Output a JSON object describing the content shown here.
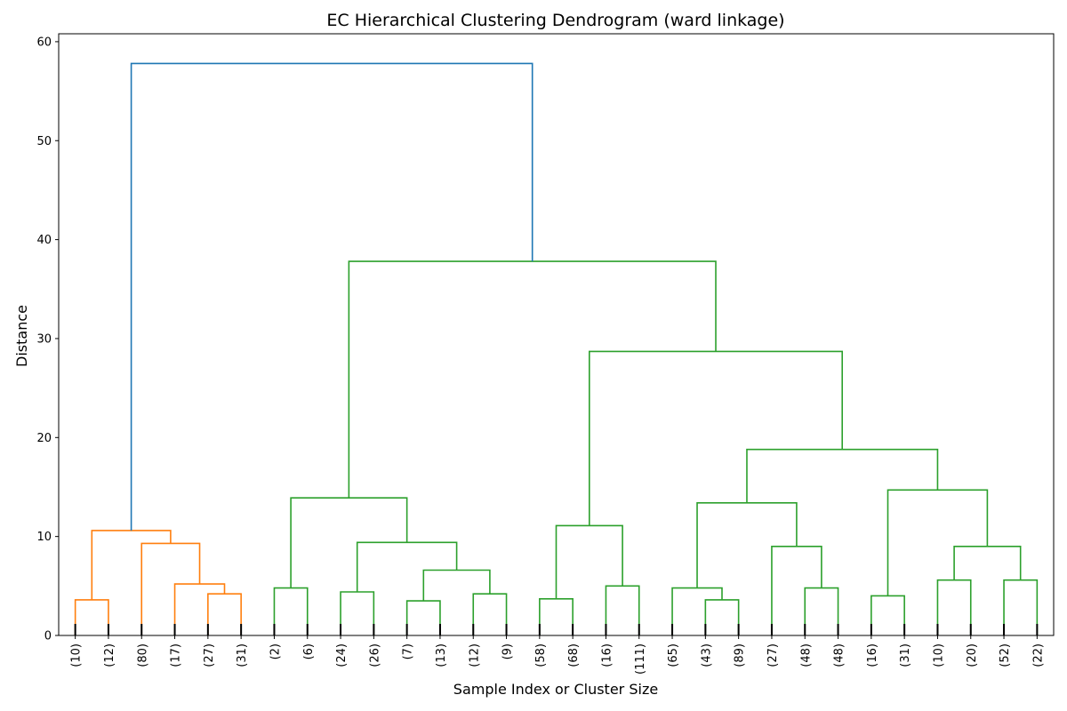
{
  "chart_data": {
    "type": "dendrogram",
    "title": "EC Hierarchical Clustering Dendrogram (ward linkage)",
    "xlabel": "Sample Index or Cluster Size",
    "ylabel": "Distance",
    "ylim": [
      0,
      60.8
    ],
    "yticks": [
      0,
      10,
      20,
      30,
      40,
      50,
      60
    ],
    "grid": false,
    "colors": {
      "above_threshold": "#1f77b4",
      "cluster_1": "#ff7f0e",
      "cluster_2": "#2ca02c",
      "leaf_marks": "#000000"
    },
    "leaves": [
      "(10)",
      "(12)",
      "(80)",
      "(17)",
      "(27)",
      "(31)",
      "(2)",
      "(6)",
      "(24)",
      "(26)",
      "(7)",
      "(13)",
      "(12)",
      "(9)",
      "(58)",
      "(68)",
      "(16)",
      "(111)",
      "(65)",
      "(43)",
      "(89)",
      "(27)",
      "(48)",
      "(48)",
      "(16)",
      "(31)",
      "(10)",
      "(20)",
      "(52)",
      "(22)"
    ],
    "merges": [
      {
        "a": "L0",
        "b": "L1",
        "height": 3.6,
        "color": "cluster_1"
      },
      {
        "a": "L4",
        "b": "L5",
        "height": 4.2,
        "color": "cluster_1"
      },
      {
        "a": "L3",
        "b": "N1",
        "height": 5.2,
        "color": "cluster_1"
      },
      {
        "a": "L2",
        "b": "N2",
        "height": 9.3,
        "color": "cluster_1"
      },
      {
        "a": "N0",
        "b": "N3",
        "height": 10.6,
        "color": "cluster_1"
      },
      {
        "a": "L6",
        "b": "L7",
        "height": 4.8,
        "color": "cluster_2"
      },
      {
        "a": "L8",
        "b": "L9",
        "height": 4.4,
        "color": "cluster_2"
      },
      {
        "a": "L10",
        "b": "L11",
        "height": 3.5,
        "color": "cluster_2"
      },
      {
        "a": "L12",
        "b": "L13",
        "height": 4.2,
        "color": "cluster_2"
      },
      {
        "a": "N7",
        "b": "N8",
        "height": 6.6,
        "color": "cluster_2"
      },
      {
        "a": "N6",
        "b": "N9",
        "height": 9.4,
        "color": "cluster_2"
      },
      {
        "a": "N5",
        "b": "N10",
        "height": 13.9,
        "color": "cluster_2"
      },
      {
        "a": "L14",
        "b": "L15",
        "height": 3.7,
        "color": "cluster_2"
      },
      {
        "a": "L16",
        "b": "L17",
        "height": 5.0,
        "color": "cluster_2"
      },
      {
        "a": "N12",
        "b": "N13",
        "height": 11.1,
        "color": "cluster_2"
      },
      {
        "a": "L19",
        "b": "L20",
        "height": 3.6,
        "color": "cluster_2"
      },
      {
        "a": "L18",
        "b": "N15",
        "height": 4.8,
        "color": "cluster_2"
      },
      {
        "a": "L22",
        "b": "L23",
        "height": 4.8,
        "color": "cluster_2"
      },
      {
        "a": "L21",
        "b": "N17",
        "height": 9.0,
        "color": "cluster_2"
      },
      {
        "a": "N16",
        "b": "N18",
        "height": 13.4,
        "color": "cluster_2"
      },
      {
        "a": "L24",
        "b": "L25",
        "height": 4.0,
        "color": "cluster_2"
      },
      {
        "a": "L26",
        "b": "L27",
        "height": 5.6,
        "color": "cluster_2"
      },
      {
        "a": "L28",
        "b": "L29",
        "height": 5.6,
        "color": "cluster_2"
      },
      {
        "a": "N21",
        "b": "N22",
        "height": 9.0,
        "color": "cluster_2"
      },
      {
        "a": "N20",
        "b": "N23",
        "height": 14.7,
        "color": "cluster_2"
      },
      {
        "a": "N19",
        "b": "N24",
        "height": 18.8,
        "color": "cluster_2"
      },
      {
        "a": "N14",
        "b": "N25",
        "height": 28.7,
        "color": "cluster_2"
      },
      {
        "a": "N11",
        "b": "N26",
        "height": 37.8,
        "color": "cluster_2"
      },
      {
        "a": "N4",
        "b": "N27",
        "height": 57.8,
        "color": "above_threshold"
      }
    ]
  }
}
